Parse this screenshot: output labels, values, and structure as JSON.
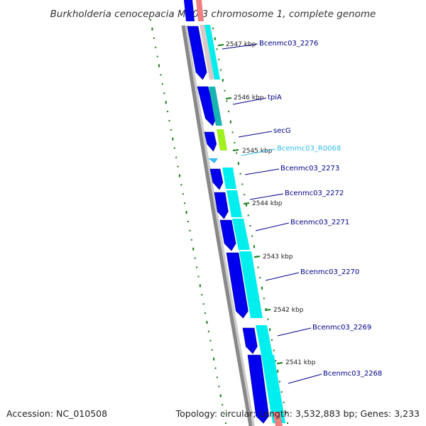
{
  "title": "Burkholderia cenocepacia MC0-3 chromosome 1, complete genome",
  "footer": {
    "accession": "Accession: NC_010508",
    "summary": "Topology: circular; Length: 3,532,883 bp; Genes: 3,233"
  },
  "ticks": [
    {
      "label": "2547 kbp"
    },
    {
      "label": "2546 kbp"
    },
    {
      "label": "2545 kbp"
    },
    {
      "label": "2544 kbp"
    },
    {
      "label": "2543 kbp"
    },
    {
      "label": "2542 kbp"
    },
    {
      "label": "2541 kbp"
    }
  ],
  "genes": [
    {
      "label": "Bcenmc03_2276",
      "color": "#00008b"
    },
    {
      "label": "tpiA",
      "color": "#00008b"
    },
    {
      "label": "secG",
      "color": "#00008b"
    },
    {
      "label": "Bcenmc03_R0068",
      "color": "#33bbee"
    },
    {
      "label": "Bcenmc03_2273",
      "color": "#00008b"
    },
    {
      "label": "Bcenmc03_2272",
      "color": "#00008b"
    },
    {
      "label": "Bcenmc03_2271",
      "color": "#00008b"
    },
    {
      "label": "Bcenmc03_2270",
      "color": "#00008b"
    },
    {
      "label": "Bcenmc03_2269",
      "color": "#00008b"
    },
    {
      "label": "Bcenmc03_2268",
      "color": "#00008b"
    }
  ],
  "colors": {
    "cds": "#0000ee",
    "cds_dark": "#00008b",
    "cog_cyan": "#00eeee",
    "cog_teal": "#19b2b2",
    "cog_green": "#a0f020",
    "cog_red": "#f08080",
    "rna": "#33bbee",
    "backbone": "#888888",
    "tick": "#1a7a1a",
    "label_line": "#0000cc"
  }
}
